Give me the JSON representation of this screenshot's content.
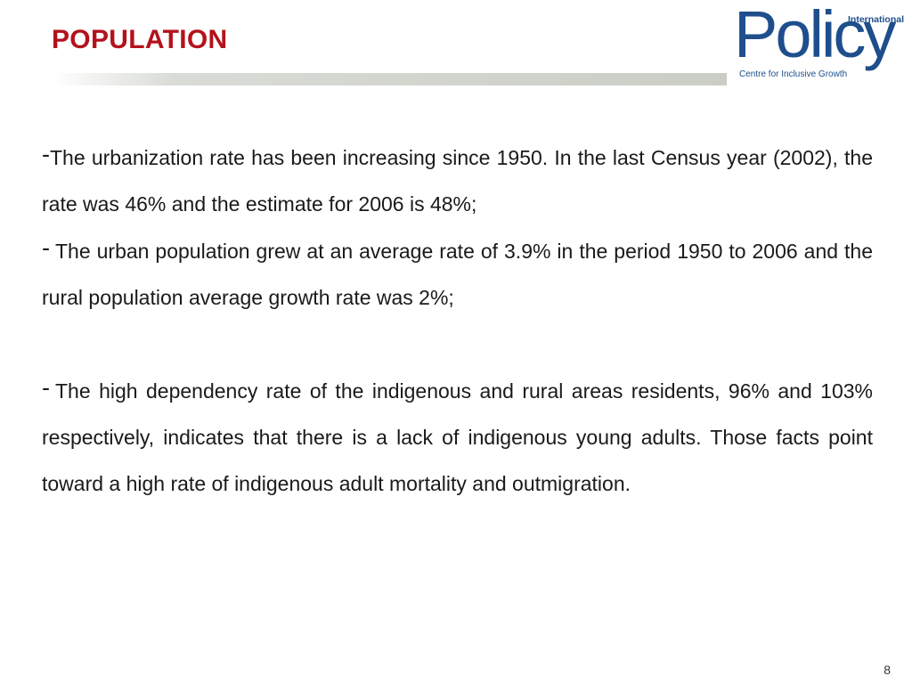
{
  "slide": {
    "title": "POPULATION",
    "page_number": "8"
  },
  "logo": {
    "word": "Policy",
    "international": "International",
    "tagline": "Centre for Inclusive Growth"
  },
  "bullets": [
    {
      "marker": "-",
      "text": "The urbanization rate has been increasing since 1950. In the last Census year (2002), the rate was 46% and the estimate for 2006 is 48%;"
    },
    {
      "marker": "-",
      "text": "The urban population grew at an average rate of 3.9% in the period 1950 to 2006 and the rural population average growth rate was 2%;"
    },
    {
      "marker": "-",
      "text": "The high dependency rate of the indigenous and rural areas residents, 96% and 103% respectively, indicates that there is a lack of indigenous young adults. Those facts point toward a high rate of indigenous adult mortality and outmigration."
    }
  ],
  "colors": {
    "title": "#b3121c",
    "logo": "#1e4e8c",
    "rule": "#c9cdc4"
  }
}
